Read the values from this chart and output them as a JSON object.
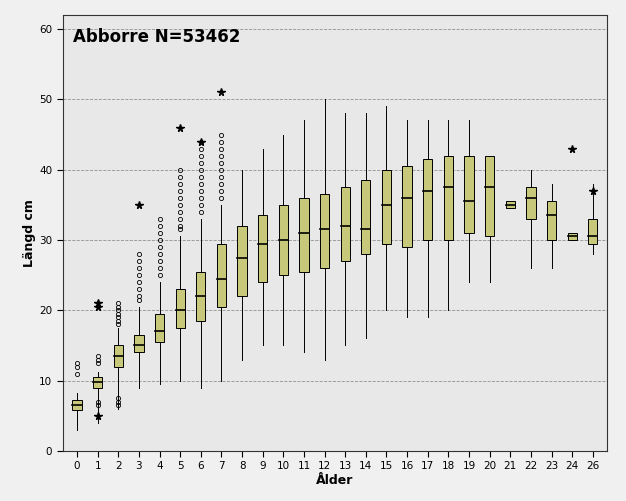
{
  "title": "Abborre N=53462",
  "xlabel": "Ålder",
  "ylabel": "Längd cm",
  "ylim": [
    0,
    62
  ],
  "yticks": [
    0,
    10,
    20,
    30,
    40,
    50,
    60
  ],
  "plot_bg": "#e8e8e8",
  "fig_bg": "#f0f0f0",
  "box_facecolor": "#c8c87a",
  "box_edgecolor": "#000000",
  "ages": [
    0,
    1,
    2,
    3,
    4,
    5,
    6,
    7,
    8,
    9,
    10,
    11,
    12,
    13,
    14,
    15,
    16,
    17,
    18,
    19,
    20,
    21,
    22,
    23,
    24,
    26
  ],
  "boxes": [
    {
      "age": 0,
      "q1": 5.8,
      "median": 6.5,
      "q3": 7.2,
      "whislo": 3.0,
      "whishi": 8.2,
      "fliers_circ": [
        11.0,
        12.0,
        12.5
      ],
      "fliers_star": []
    },
    {
      "age": 1,
      "q1": 9.0,
      "median": 9.8,
      "q3": 10.5,
      "whislo": 4.0,
      "whishi": 11.2,
      "fliers_circ": [
        6.5,
        7.0,
        12.5,
        13.0,
        13.5
      ],
      "fliers_star": [
        5.0,
        20.5,
        21.0
      ]
    },
    {
      "age": 2,
      "q1": 12.0,
      "median": 13.5,
      "q3": 15.0,
      "whislo": 6.0,
      "whishi": 17.5,
      "fliers_circ": [
        6.5,
        7.0,
        7.5,
        18.0,
        18.5,
        19.0,
        19.5,
        20.0,
        20.5,
        21.0
      ],
      "fliers_star": []
    },
    {
      "age": 3,
      "q1": 14.0,
      "median": 15.0,
      "q3": 16.5,
      "whislo": 9.0,
      "whishi": 20.5,
      "fliers_circ": [
        21.5,
        22.0,
        23.0,
        24.0,
        25.0,
        26.0,
        27.0,
        28.0
      ],
      "fliers_star": [
        35.0
      ]
    },
    {
      "age": 4,
      "q1": 15.5,
      "median": 17.0,
      "q3": 19.5,
      "whislo": 9.5,
      "whishi": 24.0,
      "fliers_circ": [
        25.0,
        26.0,
        27.0,
        28.0,
        29.0,
        30.0,
        31.0,
        32.0,
        33.0
      ],
      "fliers_star": []
    },
    {
      "age": 5,
      "q1": 17.5,
      "median": 20.0,
      "q3": 23.0,
      "whislo": 10.0,
      "whishi": 30.5,
      "fliers_circ": [
        31.5,
        32.0,
        33.0,
        34.0,
        35.0,
        36.0,
        37.0,
        38.0,
        39.0,
        40.0
      ],
      "fliers_star": [
        46.0
      ]
    },
    {
      "age": 6,
      "q1": 18.5,
      "median": 22.0,
      "q3": 25.5,
      "whislo": 9.0,
      "whishi": 33.0,
      "fliers_circ": [
        34.0,
        35.0,
        36.0,
        37.0,
        38.0,
        39.0,
        40.0,
        41.0,
        42.0,
        43.0,
        44.0
      ],
      "fliers_star": [
        44.0
      ]
    },
    {
      "age": 7,
      "q1": 20.5,
      "median": 24.5,
      "q3": 29.5,
      "whislo": 10.0,
      "whishi": 35.0,
      "fliers_circ": [
        36.0,
        37.0,
        38.0,
        39.0,
        40.0,
        41.0,
        42.0,
        43.0,
        44.0,
        45.0
      ],
      "fliers_star": [
        51.0
      ]
    },
    {
      "age": 8,
      "q1": 22.0,
      "median": 27.5,
      "q3": 32.0,
      "whislo": 13.0,
      "whishi": 40.0,
      "fliers_circ": [],
      "fliers_star": []
    },
    {
      "age": 9,
      "q1": 24.0,
      "median": 29.5,
      "q3": 33.5,
      "whislo": 15.0,
      "whishi": 43.0,
      "fliers_circ": [],
      "fliers_star": []
    },
    {
      "age": 10,
      "q1": 25.0,
      "median": 30.0,
      "q3": 35.0,
      "whislo": 15.0,
      "whishi": 45.0,
      "fliers_circ": [],
      "fliers_star": []
    },
    {
      "age": 11,
      "q1": 25.5,
      "median": 31.0,
      "q3": 36.0,
      "whislo": 14.0,
      "whishi": 47.0,
      "fliers_circ": [],
      "fliers_star": []
    },
    {
      "age": 12,
      "q1": 26.0,
      "median": 31.5,
      "q3": 36.5,
      "whislo": 13.0,
      "whishi": 50.0,
      "fliers_circ": [],
      "fliers_star": []
    },
    {
      "age": 13,
      "q1": 27.0,
      "median": 32.0,
      "q3": 37.5,
      "whislo": 15.0,
      "whishi": 48.0,
      "fliers_circ": [],
      "fliers_star": []
    },
    {
      "age": 14,
      "q1": 28.0,
      "median": 31.5,
      "q3": 38.5,
      "whislo": 16.0,
      "whishi": 48.0,
      "fliers_circ": [],
      "fliers_star": []
    },
    {
      "age": 15,
      "q1": 29.5,
      "median": 35.0,
      "q3": 40.0,
      "whislo": 20.0,
      "whishi": 49.0,
      "fliers_circ": [],
      "fliers_star": []
    },
    {
      "age": 16,
      "q1": 29.0,
      "median": 36.0,
      "q3": 40.5,
      "whislo": 19.0,
      "whishi": 47.0,
      "fliers_circ": [],
      "fliers_star": []
    },
    {
      "age": 17,
      "q1": 30.0,
      "median": 37.0,
      "q3": 41.5,
      "whislo": 19.0,
      "whishi": 47.0,
      "fliers_circ": [],
      "fliers_star": []
    },
    {
      "age": 18,
      "q1": 30.0,
      "median": 37.5,
      "q3": 42.0,
      "whislo": 20.0,
      "whishi": 47.0,
      "fliers_circ": [],
      "fliers_star": []
    },
    {
      "age": 19,
      "q1": 31.0,
      "median": 35.5,
      "q3": 42.0,
      "whislo": 24.0,
      "whishi": 47.0,
      "fliers_circ": [],
      "fliers_star": []
    },
    {
      "age": 20,
      "q1": 30.5,
      "median": 37.5,
      "q3": 42.0,
      "whislo": 24.0,
      "whishi": 42.0,
      "fliers_circ": [],
      "fliers_star": []
    },
    {
      "age": 21,
      "q1": 34.5,
      "median": 35.0,
      "q3": 35.5,
      "whislo": 34.5,
      "whishi": 35.5,
      "fliers_circ": [],
      "fliers_star": []
    },
    {
      "age": 22,
      "q1": 33.0,
      "median": 36.0,
      "q3": 37.5,
      "whislo": 26.0,
      "whishi": 40.0,
      "fliers_circ": [],
      "fliers_star": []
    },
    {
      "age": 23,
      "q1": 30.0,
      "median": 33.5,
      "q3": 35.5,
      "whislo": 26.0,
      "whishi": 38.0,
      "fliers_circ": [],
      "fliers_star": []
    },
    {
      "age": 24,
      "q1": 30.0,
      "median": 30.5,
      "q3": 31.0,
      "whislo": 30.0,
      "whishi": 31.0,
      "fliers_circ": [],
      "fliers_star": [
        43.0
      ]
    },
    {
      "age": 26,
      "q1": 29.5,
      "median": 30.5,
      "q3": 33.0,
      "whislo": 28.0,
      "whishi": 38.0,
      "fliers_circ": [],
      "fliers_star": [
        37.0
      ]
    }
  ]
}
